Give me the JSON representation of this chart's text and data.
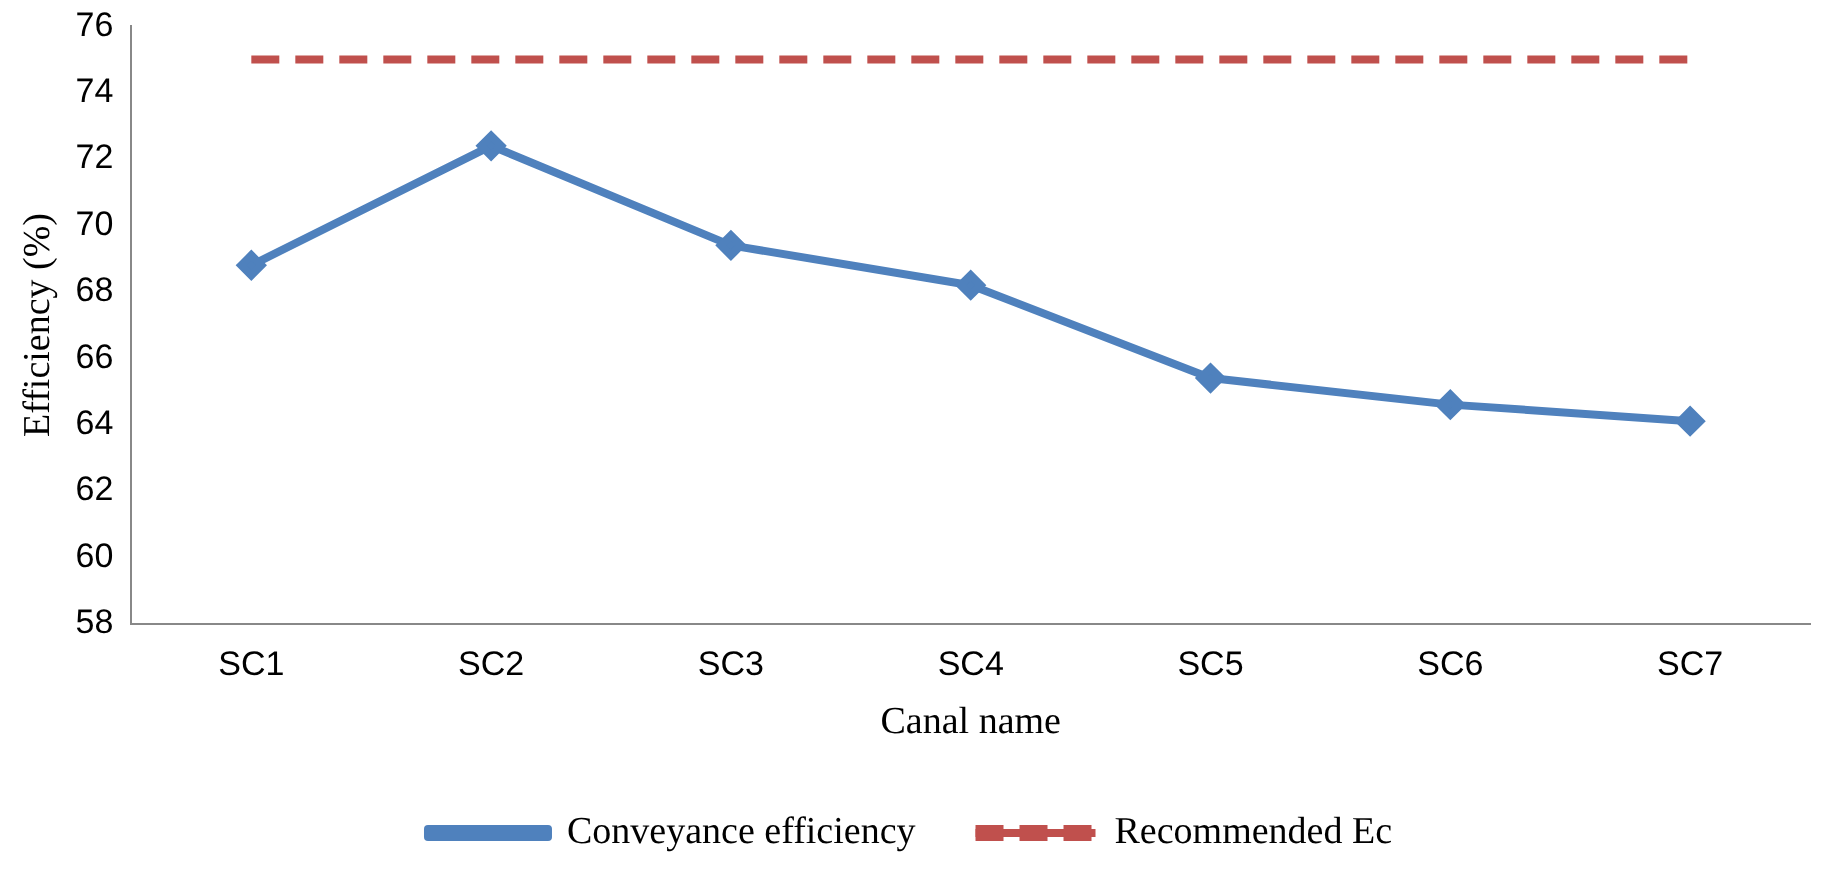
{
  "chart_data": {
    "type": "line",
    "xlabel": "Canal name",
    "ylabel": "Efficiency (%)",
    "categories": [
      "SC1",
      "SC2",
      "SC3",
      "SC4",
      "SC5",
      "SC6",
      "SC7"
    ],
    "series": [
      {
        "name": "Conveyance efficiency",
        "color": "#4f81bd",
        "marker": "diamond",
        "line_style": "solid",
        "values": [
          68.8,
          72.4,
          69.4,
          68.2,
          65.4,
          64.6,
          64.1
        ]
      },
      {
        "name": "Recommended Ec",
        "color": "#c0504d",
        "marker": "none",
        "line_style": "dashed",
        "values": [
          75,
          75,
          75,
          75,
          75,
          75,
          75
        ]
      }
    ],
    "ylim": [
      58,
      76
    ],
    "yticks": [
      58,
      60,
      62,
      64,
      66,
      68,
      70,
      72,
      74,
      76
    ],
    "legend": "bottom"
  }
}
